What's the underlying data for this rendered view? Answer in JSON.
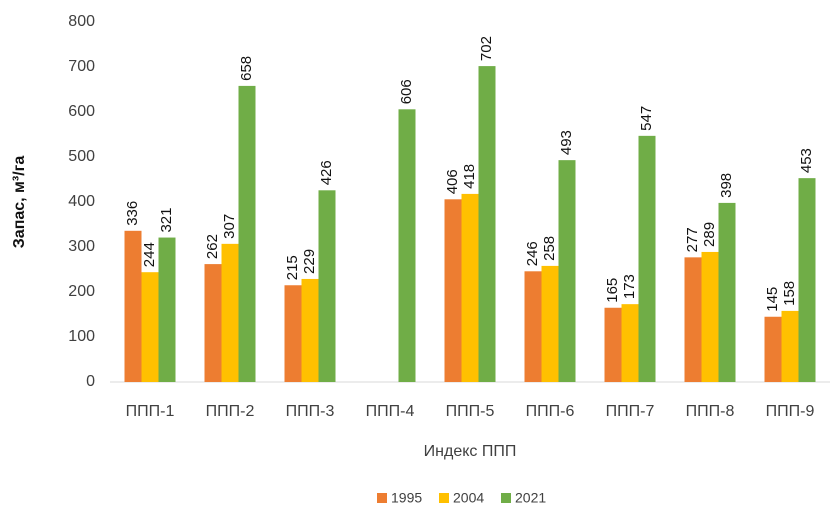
{
  "chart_data": {
    "type": "bar",
    "y_label": "Запас, м³/га",
    "x_label": "Индекс ППП",
    "categories": [
      "ППП-1",
      "ППП-2",
      "ППП-3",
      "ППП-4",
      "ППП-5",
      "ППП-6",
      "ППП-7",
      "ППП-8",
      "ППП-9"
    ],
    "series": [
      {
        "name": "1995",
        "color": "#ED7D31",
        "values": [
          336,
          262,
          215,
          null,
          406,
          246,
          165,
          277,
          145
        ]
      },
      {
        "name": "2004",
        "color": "#FFC000",
        "values": [
          244,
          307,
          229,
          null,
          418,
          258,
          173,
          289,
          158
        ]
      },
      {
        "name": "2021",
        "color": "#70AD47",
        "values": [
          321,
          658,
          426,
          606,
          702,
          493,
          547,
          398,
          453
        ]
      }
    ],
    "ylim": [
      0,
      800
    ],
    "yticks": [
      0,
      100,
      200,
      300,
      400,
      500,
      600,
      700,
      800
    ],
    "grid": false,
    "legend": "bottom"
  }
}
